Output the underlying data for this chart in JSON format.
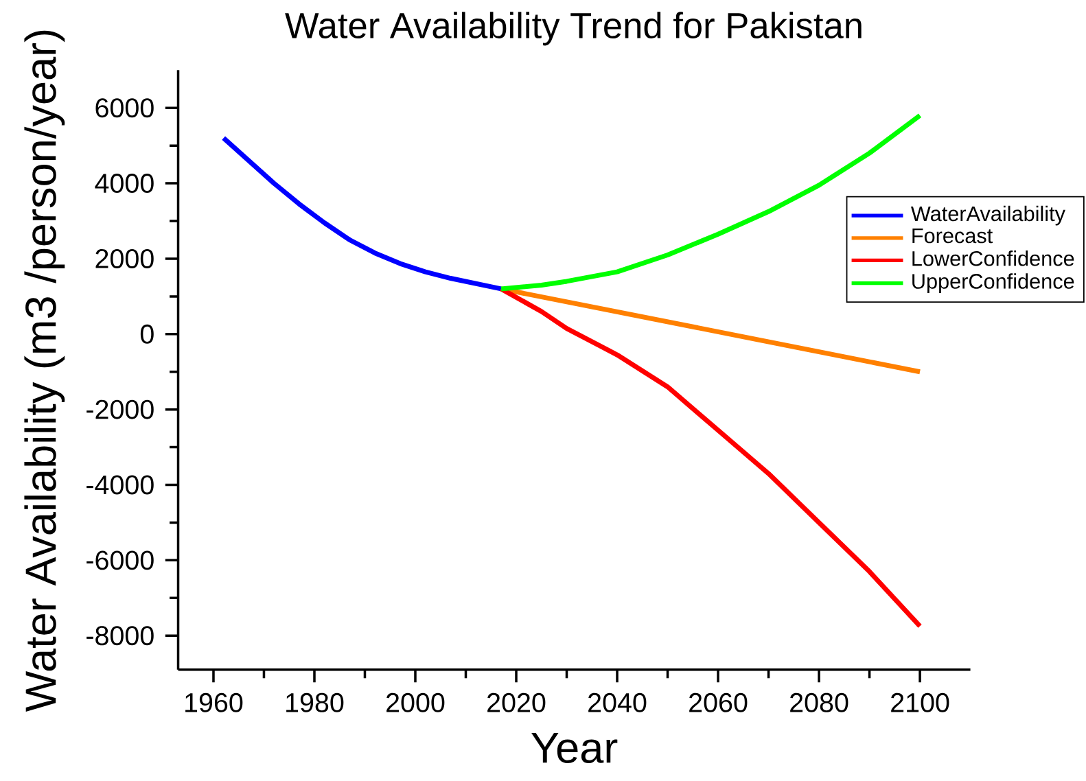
{
  "chart_data": {
    "type": "line",
    "title": "Water Availability Trend for Pakistan",
    "xlabel": "Year",
    "ylabel": "Water Availability (m3 /person/year)",
    "xlim": [
      1953,
      2110
    ],
    "xticks": [
      1960,
      1980,
      2000,
      2020,
      2040,
      2060,
      2080,
      2100
    ],
    "ylim": [
      -8900,
      7000
    ],
    "yticks": [
      -8000,
      -6000,
      -4000,
      -2000,
      0,
      2000,
      4000,
      6000
    ],
    "legend": "top right",
    "grid": false,
    "marker": "none",
    "line_style": "solid",
    "series": [
      {
        "name": "WaterAvailability",
        "color": "#0000ff",
        "x": [
          1962,
          1967,
          1972,
          1977,
          1982,
          1987,
          1992,
          1997,
          2002,
          2007,
          2012,
          2017
        ],
        "values": [
          5200,
          4600,
          4000,
          3450,
          2950,
          2500,
          2150,
          1870,
          1650,
          1480,
          1340,
          1200
        ]
      },
      {
        "name": "Forecast",
        "color": "#ff8000",
        "x": [
          2017,
          2100
        ],
        "values": [
          1200,
          -1000
        ]
      },
      {
        "name": "LowerConfidence",
        "color": "#ff0000",
        "x": [
          2017,
          2025,
          2030,
          2040,
          2050,
          2060,
          2070,
          2080,
          2090,
          2100
        ],
        "values": [
          1200,
          600,
          150,
          -550,
          -1400,
          -2550,
          -3700,
          -5000,
          -6300,
          -7750
        ]
      },
      {
        "name": "UpperConfidence",
        "color": "#00ff00",
        "x": [
          2017,
          2025,
          2030,
          2040,
          2050,
          2060,
          2070,
          2080,
          2090,
          2100
        ],
        "values": [
          1200,
          1300,
          1400,
          1650,
          2100,
          2650,
          3250,
          3950,
          4800,
          5800
        ]
      }
    ]
  }
}
